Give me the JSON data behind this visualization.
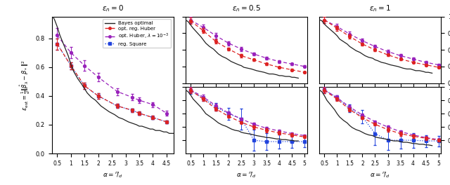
{
  "alpha_dense": [
    0.25,
    0.4,
    0.5,
    0.6,
    0.75,
    0.9,
    1.0,
    1.1,
    1.25,
    1.4,
    1.5,
    1.6,
    1.75,
    1.9,
    2.0,
    2.1,
    2.25,
    2.4,
    2.5,
    2.6,
    2.75,
    2.9,
    3.0,
    3.1,
    3.25,
    3.4,
    3.5,
    3.6,
    3.75,
    3.9,
    4.0,
    4.1,
    4.25,
    4.4,
    4.5,
    4.6,
    4.75
  ],
  "eps0": {
    "alpha_pts": [
      0.5,
      1.0,
      1.5,
      2.0,
      2.7,
      3.25,
      3.5,
      4.0,
      4.5
    ],
    "bayes_curve": [
      0.98,
      0.93,
      0.88,
      0.82,
      0.75,
      0.68,
      0.62,
      0.57,
      0.52,
      0.48,
      0.45,
      0.42,
      0.39,
      0.37,
      0.35,
      0.33,
      0.31,
      0.29,
      0.28,
      0.27,
      0.25,
      0.24,
      0.23,
      0.22,
      0.21,
      0.2,
      0.19,
      0.19,
      0.18,
      0.17,
      0.17,
      0.16,
      0.16,
      0.15,
      0.15,
      0.14,
      0.14
    ],
    "huber_opt": [
      0.76,
      0.61,
      0.47,
      0.4,
      0.33,
      0.3,
      0.28,
      0.25,
      0.22
    ],
    "huber_opt_err": [
      0.04,
      0.025,
      0.02,
      0.02,
      0.015,
      0.013,
      0.013,
      0.012,
      0.01
    ],
    "huber_lam": [
      0.82,
      0.7,
      0.61,
      0.53,
      0.43,
      0.39,
      0.37,
      0.34,
      0.28
    ],
    "huber_lam_err": [
      0.05,
      0.04,
      0.035,
      0.03,
      0.025,
      0.022,
      0.02,
      0.018,
      0.015
    ],
    "square": [
      0.76,
      0.61,
      0.47,
      0.4,
      0.33,
      0.3,
      0.28,
      0.25,
      0.22
    ],
    "square_err": [
      0.04,
      0.025,
      0.02,
      0.02,
      0.015,
      0.013,
      0.013,
      0.012,
      0.01
    ]
  },
  "eps05_top": {
    "alpha_pts": [
      0.5,
      1.0,
      1.5,
      2.0,
      2.5,
      3.0,
      3.5,
      4.0,
      4.5,
      5.0
    ],
    "bayes_curve": [
      0.97,
      0.94,
      0.9,
      0.86,
      0.81,
      0.76,
      0.72,
      0.68,
      0.64,
      0.61,
      0.58,
      0.55,
      0.52,
      0.5,
      0.48,
      0.46,
      0.44,
      0.42,
      0.41,
      0.39,
      0.38,
      0.37,
      0.36,
      0.35,
      0.34,
      0.33,
      0.32,
      0.31,
      0.31,
      0.3,
      0.29,
      0.29,
      0.28,
      0.28,
      0.27,
      0.27,
      0.26
    ],
    "huber_opt": [
      0.95,
      0.83,
      0.7,
      0.61,
      0.53,
      0.48,
      0.43,
      0.39,
      0.36,
      0.33
    ],
    "huber_opt_err": [
      0.04,
      0.03,
      0.025,
      0.02,
      0.018,
      0.015,
      0.013,
      0.012,
      0.011,
      0.01
    ],
    "huber_lam": [
      0.96,
      0.87,
      0.77,
      0.68,
      0.61,
      0.55,
      0.5,
      0.46,
      0.43,
      0.4
    ],
    "huber_lam_err": [
      0.04,
      0.035,
      0.03,
      0.025,
      0.022,
      0.02,
      0.018,
      0.016,
      0.015,
      0.013
    ]
  },
  "eps05_bot": {
    "alpha_pts": [
      0.5,
      1.0,
      1.5,
      2.0,
      2.5,
      3.0,
      3.5,
      4.0,
      4.5,
      5.0
    ],
    "bayes_curve": [
      0.97,
      0.93,
      0.88,
      0.82,
      0.76,
      0.7,
      0.65,
      0.6,
      0.56,
      0.52,
      0.49,
      0.46,
      0.43,
      0.41,
      0.39,
      0.37,
      0.35,
      0.34,
      0.32,
      0.31,
      0.3,
      0.29,
      0.28,
      0.27,
      0.26,
      0.25,
      0.24,
      0.24,
      0.23,
      0.22,
      0.22,
      0.21,
      0.21,
      0.2,
      0.2,
      0.19,
      0.19
    ],
    "huber_opt": [
      0.95,
      0.82,
      0.67,
      0.56,
      0.47,
      0.4,
      0.35,
      0.31,
      0.28,
      0.25
    ],
    "huber_opt_err": [
      0.04,
      0.03,
      0.025,
      0.02,
      0.018,
      0.025,
      0.03,
      0.028,
      0.025,
      0.022
    ],
    "huber_lam": [
      0.96,
      0.85,
      0.72,
      0.61,
      0.52,
      0.44,
      0.38,
      0.34,
      0.3,
      0.27
    ],
    "huber_lam_err": [
      0.04,
      0.035,
      0.03,
      0.025,
      0.022,
      0.02,
      0.018,
      0.016,
      0.015,
      0.013
    ],
    "square": [
      0.95,
      0.83,
      0.7,
      0.6,
      0.52,
      0.2,
      0.18,
      0.18,
      0.18,
      0.18
    ],
    "square_err": [
      0.05,
      0.04,
      0.06,
      0.09,
      0.16,
      0.16,
      0.13,
      0.11,
      0.09,
      0.08
    ]
  },
  "eps1_top": {
    "alpha_pts": [
      0.5,
      1.0,
      1.5,
      2.0,
      2.5,
      3.0,
      3.5,
      4.0,
      4.5,
      5.0
    ],
    "bayes_curve": [
      0.97,
      0.95,
      0.91,
      0.88,
      0.84,
      0.8,
      0.77,
      0.73,
      0.7,
      0.67,
      0.64,
      0.62,
      0.59,
      0.57,
      0.55,
      0.53,
      0.51,
      0.5,
      0.48,
      0.47,
      0.45,
      0.44,
      0.43,
      0.42,
      0.41,
      0.4,
      0.39,
      0.38,
      0.37,
      0.37,
      0.36,
      0.35,
      0.35,
      0.34,
      0.33,
      0.33,
      0.32
    ],
    "huber_opt": [
      0.96,
      0.86,
      0.76,
      0.67,
      0.6,
      0.54,
      0.49,
      0.45,
      0.42,
      0.39
    ],
    "huber_opt_err": [
      0.04,
      0.03,
      0.025,
      0.02,
      0.018,
      0.015,
      0.013,
      0.012,
      0.011,
      0.01
    ],
    "huber_lam": [
      0.96,
      0.88,
      0.79,
      0.71,
      0.64,
      0.58,
      0.53,
      0.49,
      0.45,
      0.42
    ],
    "huber_lam_err": [
      0.04,
      0.035,
      0.03,
      0.025,
      0.022,
      0.02,
      0.018,
      0.016,
      0.015,
      0.013
    ]
  },
  "eps1_bot": {
    "alpha_pts": [
      0.5,
      1.0,
      1.5,
      2.0,
      2.5,
      3.0,
      3.5,
      4.0,
      4.5,
      5.0
    ],
    "bayes_curve": [
      0.97,
      0.93,
      0.87,
      0.8,
      0.73,
      0.66,
      0.6,
      0.55,
      0.5,
      0.46,
      0.42,
      0.39,
      0.36,
      0.34,
      0.32,
      0.3,
      0.28,
      0.27,
      0.25,
      0.24,
      0.23,
      0.22,
      0.21,
      0.2,
      0.19,
      0.19,
      0.18,
      0.17,
      0.17,
      0.16,
      0.15,
      0.15,
      0.14,
      0.14,
      0.13,
      0.13,
      0.12
    ],
    "huber_opt": [
      0.95,
      0.82,
      0.66,
      0.54,
      0.44,
      0.36,
      0.3,
      0.26,
      0.23,
      0.2
    ],
    "huber_opt_err": [
      0.04,
      0.03,
      0.025,
      0.02,
      0.022,
      0.03,
      0.03,
      0.028,
      0.025,
      0.022
    ],
    "huber_lam": [
      0.96,
      0.84,
      0.7,
      0.58,
      0.48,
      0.4,
      0.33,
      0.28,
      0.24,
      0.21
    ],
    "huber_lam_err": [
      0.04,
      0.035,
      0.03,
      0.025,
      0.022,
      0.02,
      0.018,
      0.016,
      0.015,
      0.013
    ],
    "square": [
      0.96,
      0.84,
      0.68,
      0.55,
      0.3,
      0.2,
      0.2,
      0.2,
      0.19,
      0.19
    ],
    "square_err": [
      0.05,
      0.04,
      0.06,
      0.1,
      0.17,
      0.15,
      0.13,
      0.11,
      0.09,
      0.08
    ]
  },
  "colors": {
    "bayes": "#222222",
    "huber_opt": "#dd2222",
    "huber_lam": "#9922bb",
    "square": "#2244dd"
  },
  "titles": [
    "$\\epsilon_n = 0$",
    "$\\epsilon_n = 0.5$",
    "$\\epsilon_n = 1$"
  ],
  "xlabel": "$\\alpha = {}^n\\!/_d$",
  "ylabel": "$\\varepsilon_{\\rm est} = \\frac{1}{d}\\|\\hat{\\beta}_\\lambda - \\beta_*\\|^2$",
  "legend_labels": [
    "Bayes optimal",
    "opt. reg. Huber",
    "opt. Huber, $\\lambda=10^{-3}$",
    "reg. Square"
  ]
}
